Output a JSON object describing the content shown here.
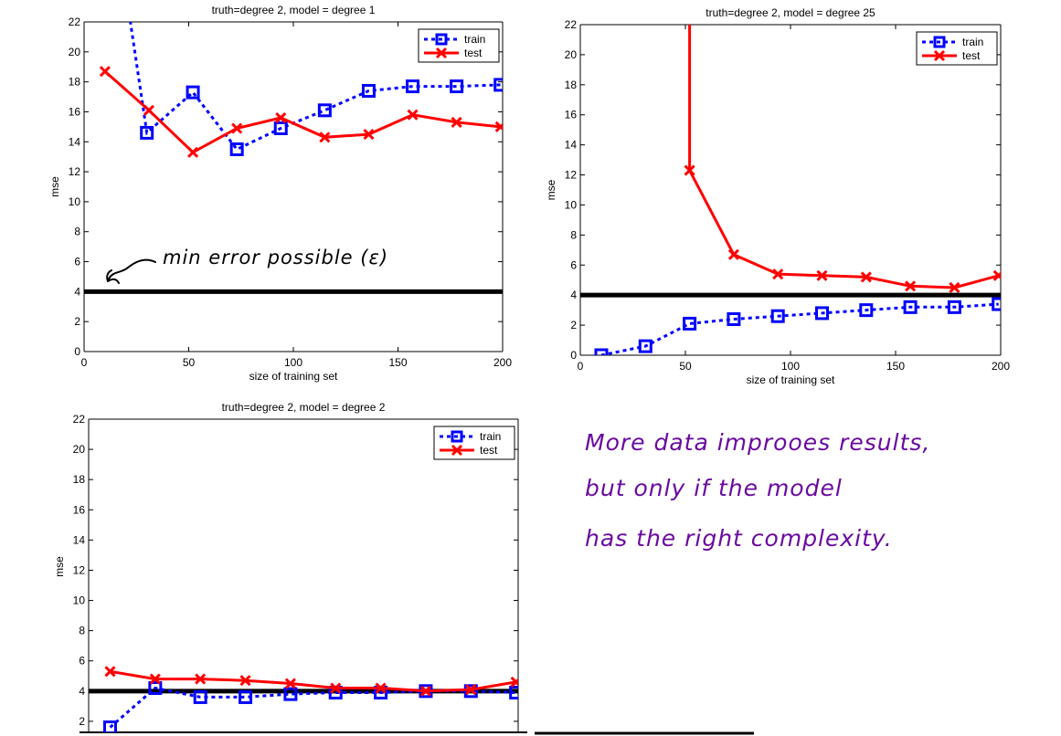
{
  "chart_data": [
    {
      "type": "line",
      "title": "truth=degree 2, model = degree 1",
      "xlabel": "size of training set",
      "ylabel": "mse",
      "xlim": [
        0,
        200
      ],
      "ylim": [
        0,
        22
      ],
      "xticks": [
        0,
        50,
        100,
        150,
        200
      ],
      "yticks": [
        0,
        2,
        4,
        6,
        8,
        10,
        12,
        14,
        16,
        18,
        20,
        22
      ],
      "legend": "top-right",
      "hline": 4,
      "series": [
        {
          "name": "train",
          "color": "#0000ff",
          "style": "dotted-square",
          "x": [
            20,
            30,
            52,
            73,
            94,
            115,
            136,
            157,
            178,
            199
          ],
          "y": [
            24,
            14.6,
            17.3,
            13.5,
            14.9,
            16.1,
            17.4,
            17.7,
            17.7,
            17.8
          ],
          "marker_from": 1
        },
        {
          "name": "test",
          "color": "#ff0000",
          "style": "solid-x",
          "x": [
            10,
            31,
            52,
            73,
            94,
            115,
            136,
            157,
            178,
            199
          ],
          "y": [
            18.7,
            16.1,
            13.3,
            14.9,
            15.6,
            14.3,
            14.5,
            15.8,
            15.3,
            15.0
          ]
        }
      ]
    },
    {
      "type": "line",
      "title": "truth=degree 2, model = degree 25",
      "xlabel": "size of training set",
      "ylabel": "mse",
      "xlim": [
        0,
        200
      ],
      "ylim": [
        0,
        22
      ],
      "xticks": [
        0,
        50,
        100,
        150,
        200
      ],
      "yticks": [
        0,
        2,
        4,
        6,
        8,
        10,
        12,
        14,
        16,
        18,
        20,
        22
      ],
      "legend": "top-right",
      "hline": 4,
      "series": [
        {
          "name": "train",
          "color": "#0000ff",
          "style": "dotted-square",
          "x": [
            10,
            31,
            52,
            73,
            94,
            115,
            136,
            157,
            178,
            199
          ],
          "y": [
            0.0,
            0.6,
            2.1,
            2.4,
            2.6,
            2.8,
            3.0,
            3.2,
            3.2,
            3.4
          ]
        },
        {
          "name": "test",
          "color": "#ff0000",
          "style": "solid-x",
          "x": [
            52,
            52,
            73,
            94,
            115,
            136,
            157,
            178,
            199
          ],
          "y": [
            24,
            12.3,
            6.7,
            5.4,
            5.3,
            5.2,
            4.6,
            4.5,
            5.3
          ],
          "marker_from": 1
        }
      ]
    },
    {
      "type": "line",
      "title": "truth=degree 2, model = degree 2",
      "xlabel": "",
      "ylabel": "mse",
      "xlim": [
        0,
        200
      ],
      "ylim": [
        0,
        22
      ],
      "xticks": [],
      "yticks": [
        2,
        4,
        6,
        8,
        10,
        12,
        14,
        16,
        18,
        20,
        22
      ],
      "legend": "top-right",
      "hline": 4,
      "series": [
        {
          "name": "train",
          "color": "#0000ff",
          "style": "dotted-square",
          "x": [
            10,
            31,
            52,
            73,
            94,
            115,
            136,
            157,
            178,
            199
          ],
          "y": [
            1.6,
            4.2,
            3.6,
            3.6,
            3.8,
            3.9,
            3.9,
            4.0,
            4.0,
            3.9
          ]
        },
        {
          "name": "test",
          "color": "#ff0000",
          "style": "solid-x",
          "x": [
            10,
            31,
            52,
            73,
            94,
            115,
            136,
            157,
            178,
            199
          ],
          "y": [
            5.3,
            4.8,
            4.8,
            4.7,
            4.5,
            4.2,
            4.2,
            4.0,
            4.1,
            4.6
          ]
        }
      ]
    }
  ],
  "annotations": {
    "min_error": "min error possible (ε)",
    "note_lines": [
      "More data improoes results,",
      "but only if the model",
      "has the right complexity."
    ]
  }
}
